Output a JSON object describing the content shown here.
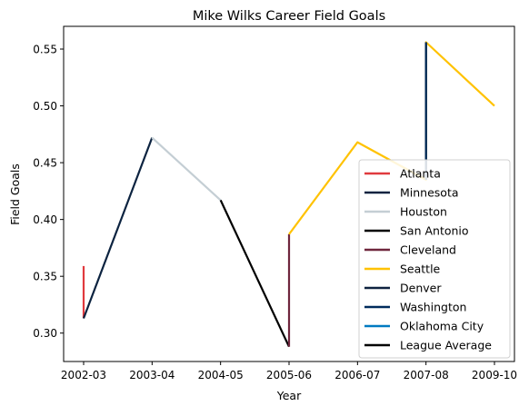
{
  "chart_data": {
    "type": "line",
    "title": "Mike Wilks  Career Field Goals",
    "xlabel": "Year",
    "ylabel": "Field Goals",
    "categories": [
      "2002-03",
      "2003-04",
      "2004-05",
      "2005-06",
      "2006-07",
      "2007-08",
      "2009-10"
    ],
    "ylim": [
      0.275,
      0.57
    ],
    "yticks": [
      0.3,
      0.35,
      0.4,
      0.45,
      0.5,
      0.55
    ],
    "ytick_labels": [
      "0.30",
      "0.35",
      "0.40",
      "0.45",
      "0.50",
      "0.55"
    ],
    "grid": false,
    "legend_position": "lower-right",
    "series": [
      {
        "name": "Atlanta",
        "color": "#E03A3E",
        "points": [
          [
            "2002-03",
            0.359
          ],
          [
            "2002-03",
            0.313
          ]
        ]
      },
      {
        "name": "Minnesota",
        "color": "#0C2340",
        "points": [
          [
            "2002-03",
            0.313
          ],
          [
            "2003-04",
            0.472
          ]
        ]
      },
      {
        "name": "Houston",
        "color": "#C4CED4",
        "points": [
          [
            "2003-04",
            0.472
          ],
          [
            "2004-05",
            0.417
          ]
        ]
      },
      {
        "name": "San Antonio",
        "color": "#000000",
        "points": [
          [
            "2004-05",
            0.417
          ],
          [
            "2005-06",
            0.288
          ]
        ]
      },
      {
        "name": "Cleveland",
        "color": "#6F263D",
        "points": [
          [
            "2005-06",
            0.288
          ],
          [
            "2005-06",
            0.387
          ]
        ]
      },
      {
        "name": "Seattle",
        "color": "#FFC200",
        "points": [
          [
            "2005-06",
            0.387
          ],
          [
            "2006-07",
            0.468
          ],
          [
            "2007-08",
            0.435
          ],
          [
            "2007-08",
            0.556
          ],
          [
            "2009-10",
            0.5
          ]
        ]
      },
      {
        "name": "Denver",
        "color": "#0E2240",
        "points": [
          [
            "2007-08",
            0.435
          ],
          [
            "2007-08",
            0.556
          ]
        ]
      },
      {
        "name": "Washington",
        "color": "#002B5C",
        "points": [
          [
            "2007-08",
            0.435
          ],
          [
            "2007-08",
            0.556
          ]
        ]
      },
      {
        "name": "Oklahoma City",
        "color": "#007AC1",
        "points": []
      },
      {
        "name": "League Average",
        "color": "#000000",
        "points": []
      }
    ]
  }
}
